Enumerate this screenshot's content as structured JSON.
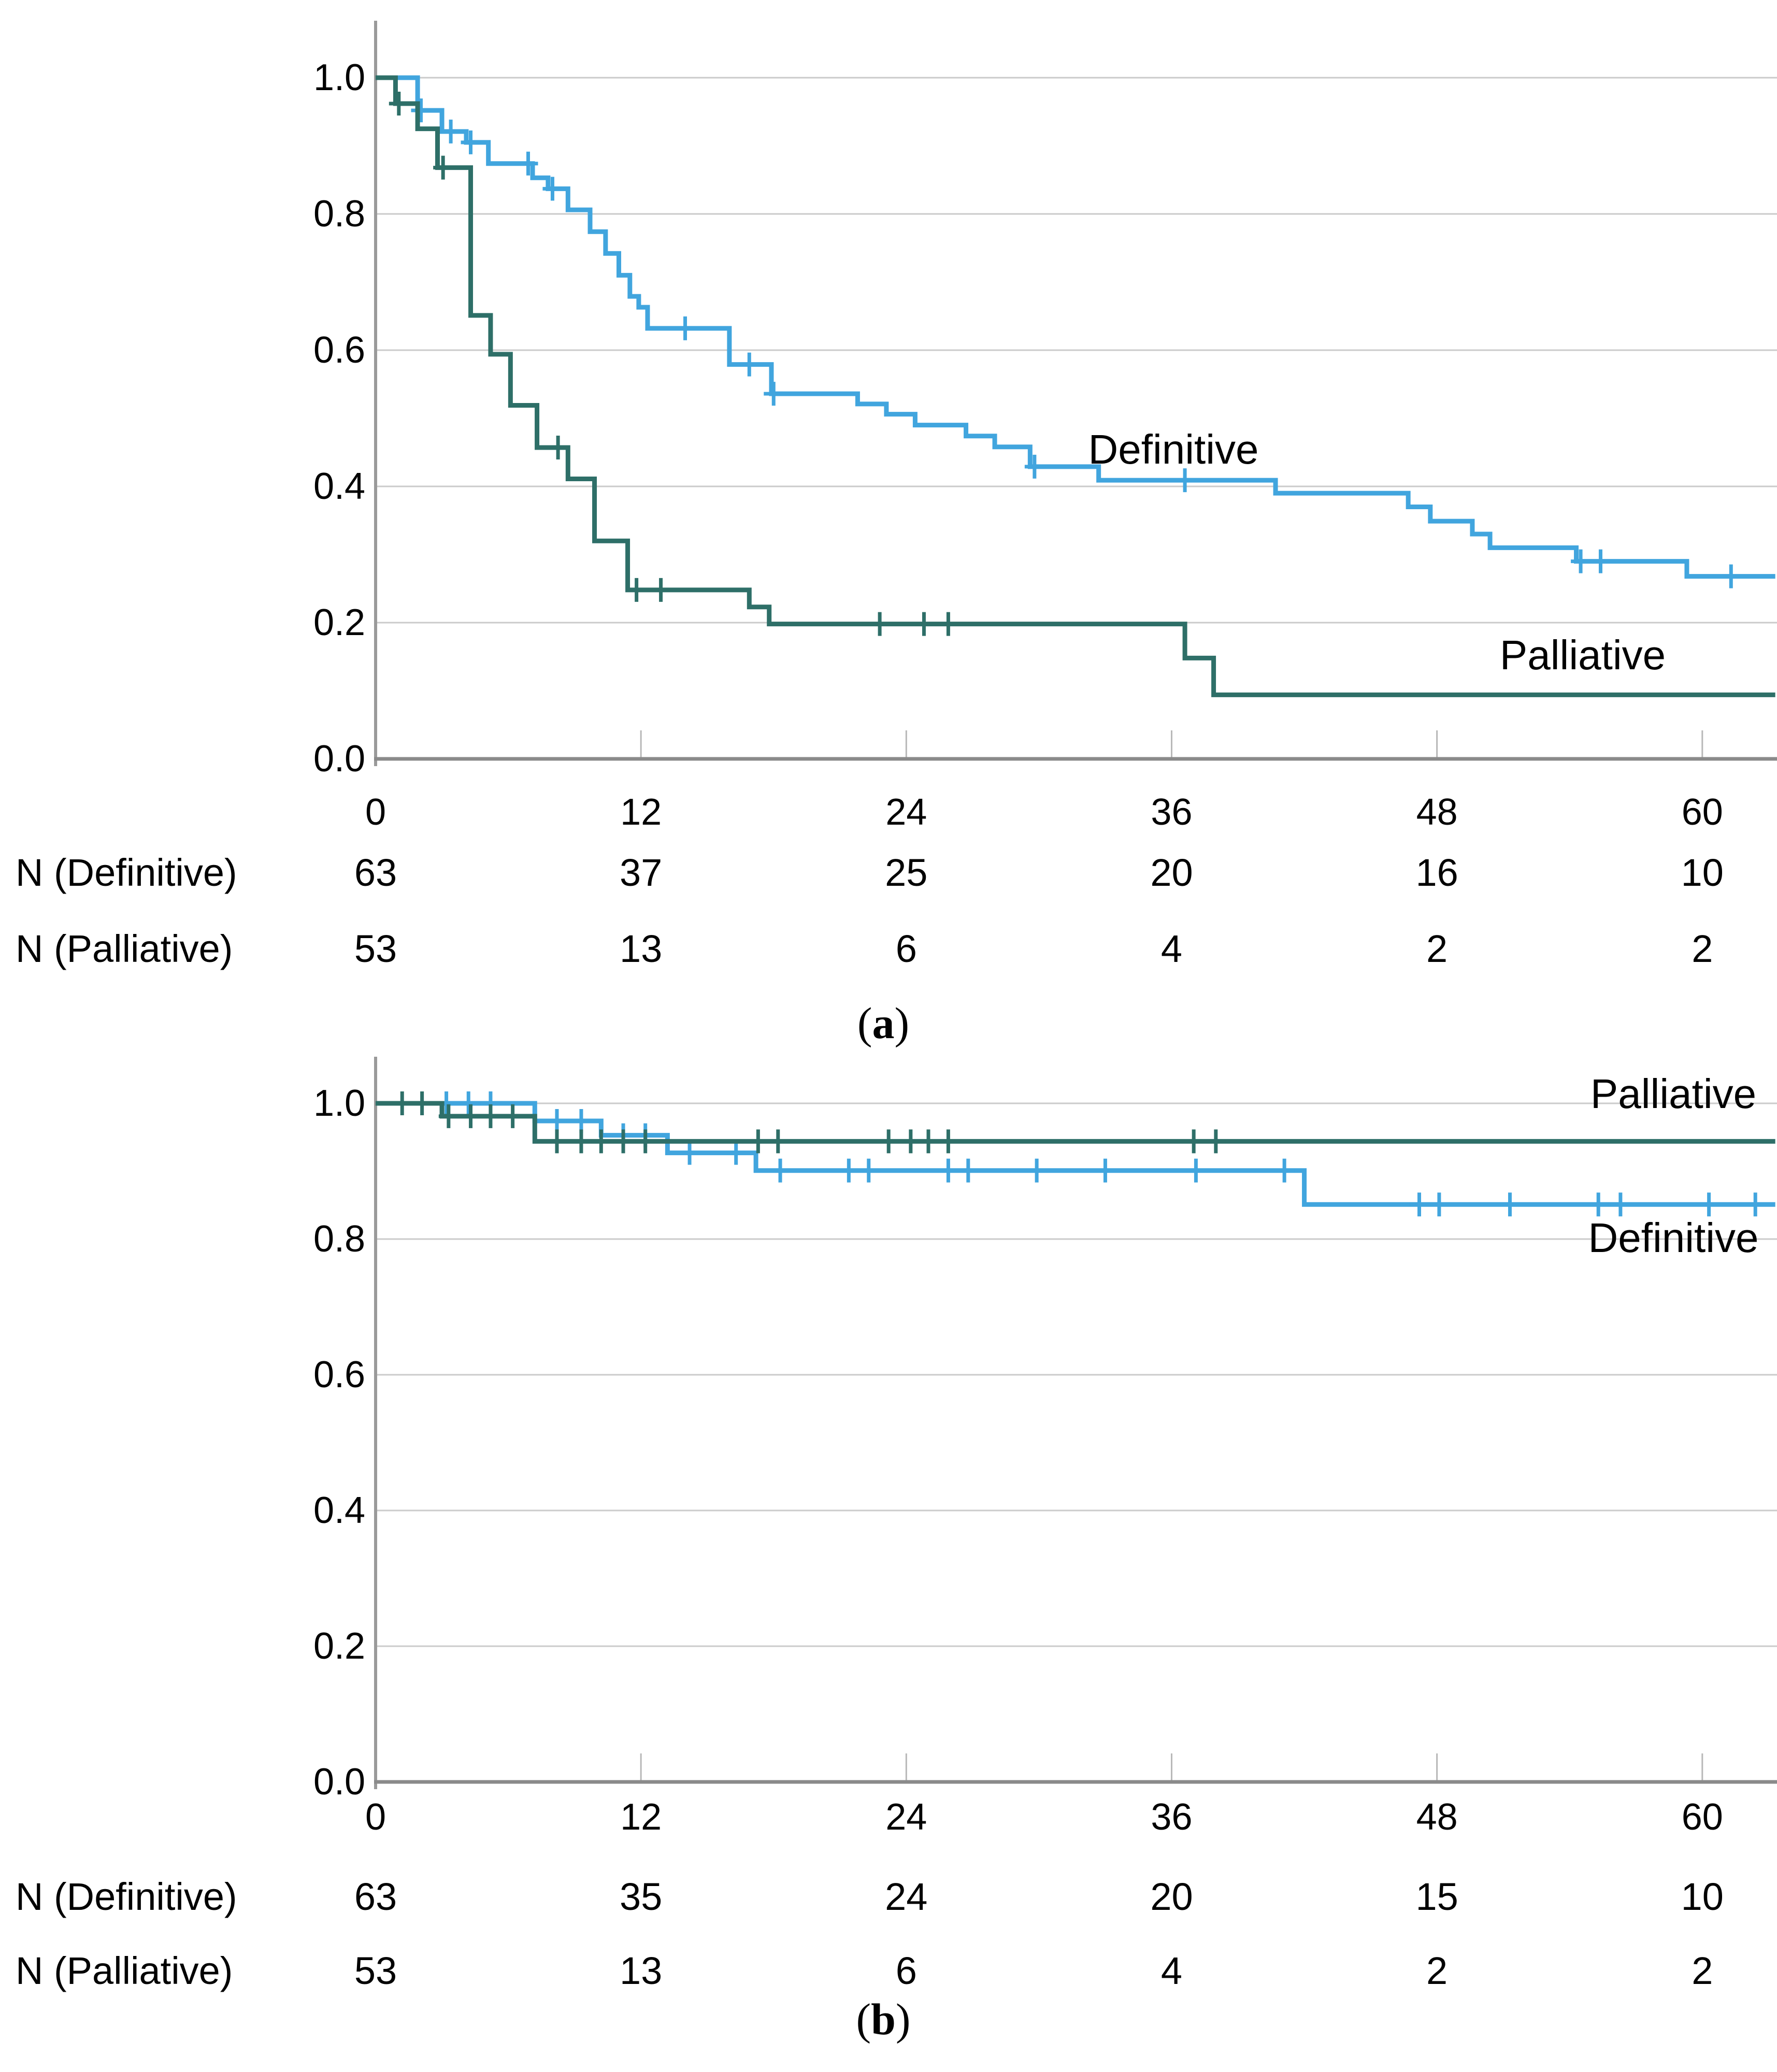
{
  "figure": {
    "background": "#ffffff",
    "colors": {
      "definitive": "#41A5DE",
      "palliative": "#2E6F68",
      "grid": "#CBCBCB",
      "tick_stub": "#B8B8B8",
      "x_axis": "#8A8A8A",
      "y_axis": "#9A9A9A",
      "text": "#000000"
    }
  },
  "chart_data": [
    {
      "type": "line",
      "subtype": "kaplan_meier_step",
      "panel": "a",
      "caption_open": "(",
      "caption_letter": "a",
      "caption_close": ")",
      "xlabel": "",
      "ylabel": "",
      "xlim": [
        0,
        63.3
      ],
      "ylim": [
        0.0,
        1.0
      ],
      "x_tick_values": [
        0,
        12,
        24,
        36,
        48,
        60
      ],
      "x_tick_labels": [
        "0",
        "12",
        "24",
        "36",
        "48",
        "60"
      ],
      "y_tick_labels": [
        "1.0",
        "0.8",
        "0.6",
        "0.4",
        "0.2",
        "0.0"
      ],
      "grid": "horizontal",
      "legend_position": "inline-annotations",
      "series": [
        {
          "name": "Definitive",
          "label": "Definitive",
          "color": "#41A5DE",
          "steps": [
            [
              0,
              1.0
            ],
            [
              1.9,
              0.952
            ],
            [
              3.0,
              0.921
            ],
            [
              4.1,
              0.905
            ],
            [
              5.1,
              0.874
            ],
            [
              7.1,
              0.853
            ],
            [
              7.8,
              0.837
            ],
            [
              8.7,
              0.806
            ],
            [
              9.7,
              0.774
            ],
            [
              10.4,
              0.742
            ],
            [
              11.0,
              0.71
            ],
            [
              11.5,
              0.679
            ],
            [
              11.9,
              0.663
            ],
            [
              12.3,
              0.632
            ],
            [
              16.0,
              0.579
            ],
            [
              17.9,
              0.536
            ],
            [
              21.8,
              0.521
            ],
            [
              23.1,
              0.506
            ],
            [
              24.4,
              0.49
            ],
            [
              26.7,
              0.474
            ],
            [
              28.0,
              0.458
            ],
            [
              29.6,
              0.429
            ],
            [
              32.7,
              0.409
            ],
            [
              40.7,
              0.39
            ],
            [
              46.7,
              0.37
            ],
            [
              47.7,
              0.349
            ],
            [
              49.6,
              0.33
            ],
            [
              50.4,
              0.31
            ],
            [
              54.3,
              0.29
            ],
            [
              59.3,
              0.268
            ]
          ],
          "end_month": 63.3,
          "censor_months": [
            2.05,
            3.4,
            4.3,
            6.9,
            8.0,
            14.0,
            16.9,
            18.0,
            29.8,
            36.6,
            54.5,
            55.4,
            61.3
          ]
        },
        {
          "name": "Palliative",
          "label": "Palliative",
          "color": "#2E6F68",
          "steps": [
            [
              0,
              1.0
            ],
            [
              0.9,
              0.962
            ],
            [
              1.9,
              0.925
            ],
            [
              2.8,
              0.868
            ],
            [
              4.3,
              0.651
            ],
            [
              5.2,
              0.594
            ],
            [
              6.1,
              0.519
            ],
            [
              7.3,
              0.457
            ],
            [
              8.7,
              0.411
            ],
            [
              9.9,
              0.32
            ],
            [
              11.4,
              0.248
            ],
            [
              16.9,
              0.223
            ],
            [
              17.8,
              0.198
            ],
            [
              36.6,
              0.148
            ],
            [
              37.9,
              0.094
            ]
          ],
          "end_month": 63.3,
          "censor_months": [
            1.05,
            3.05,
            8.25,
            11.8,
            12.9,
            22.8,
            24.8,
            25.9
          ]
        }
      ],
      "at_risk": [
        {
          "label": "N (Definitive)",
          "values": [
            "63",
            "37",
            "25",
            "20",
            "16",
            "10"
          ]
        },
        {
          "label": "N (Palliative)",
          "values": [
            "53",
            "13",
            "6",
            "4",
            "2",
            "2"
          ]
        }
      ]
    },
    {
      "type": "line",
      "subtype": "kaplan_meier_step",
      "panel": "b",
      "caption_open": "(",
      "caption_letter": "b",
      "caption_close": ")",
      "xlabel": "",
      "ylabel": "",
      "xlim": [
        0,
        63.3
      ],
      "ylim": [
        0.0,
        1.0
      ],
      "x_tick_values": [
        0,
        12,
        24,
        36,
        48,
        60
      ],
      "x_tick_labels": [
        "0",
        "12",
        "24",
        "36",
        "48",
        "60"
      ],
      "y_tick_labels": [
        "1.0",
        "0.8",
        "0.6",
        "0.4",
        "0.2",
        "0.0"
      ],
      "grid": "horizontal",
      "legend_position": "inline-annotations",
      "series": [
        {
          "name": "Definitive",
          "label": "Definitive",
          "color": "#41A5DE",
          "steps": [
            [
              0,
              1.0
            ],
            [
              7.2,
              0.974
            ],
            [
              10.2,
              0.953
            ],
            [
              13.2,
              0.927
            ],
            [
              17.2,
              0.901
            ],
            [
              42.0,
              0.851
            ]
          ],
          "end_month": 63.3,
          "censor_months": [
            3.2,
            4.2,
            5.2,
            8.2,
            9.3,
            11.2,
            12.2,
            14.2,
            16.3,
            18.3,
            21.4,
            22.3,
            25.9,
            26.8,
            29.9,
            33.0,
            37.1,
            41.1,
            47.2,
            48.1,
            51.3,
            55.3,
            56.3,
            60.3,
            62.4
          ]
        },
        {
          "name": "Palliative",
          "label": "Palliative",
          "color": "#2E6F68",
          "steps": [
            [
              0,
              1.0
            ],
            [
              3.0,
              0.981
            ],
            [
              7.2,
              0.944
            ]
          ],
          "end_month": 63.3,
          "censor_months": [
            1.2,
            2.1,
            3.3,
            4.3,
            5.2,
            6.2,
            8.2,
            9.3,
            10.2,
            11.2,
            12.2,
            17.3,
            18.2,
            23.2,
            24.2,
            25.0,
            25.9,
            37.0,
            38.0
          ]
        }
      ],
      "at_risk": [
        {
          "label": "N (Definitive)",
          "values": [
            "63",
            "35",
            "24",
            "20",
            "15",
            "10"
          ]
        },
        {
          "label": "N (Palliative)",
          "values": [
            "53",
            "13",
            "6",
            "4",
            "2",
            "2"
          ]
        }
      ]
    }
  ]
}
